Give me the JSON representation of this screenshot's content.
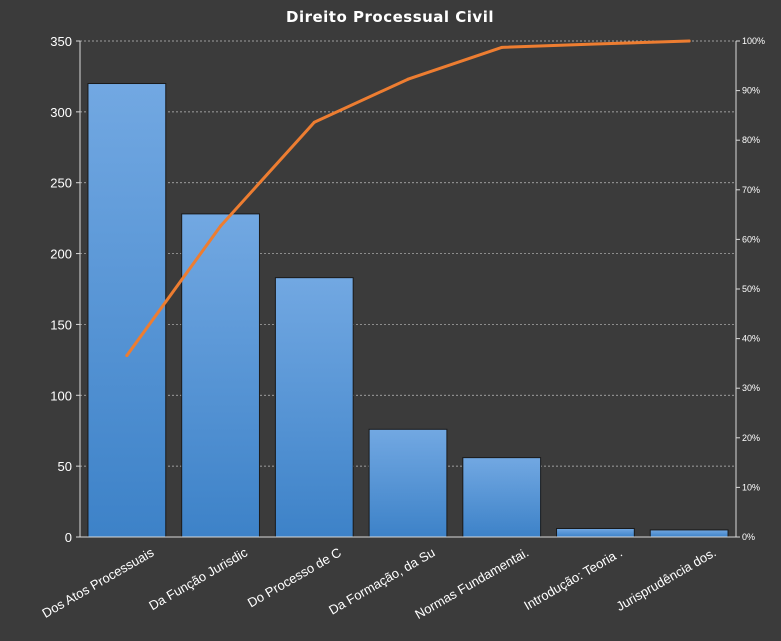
{
  "chart_data": {
    "type": "bar",
    "title": "Direito  Processual  Civil",
    "categories": [
      "Dos Atos Processuais",
      "Da Função Jurisdic",
      "Do Processo de C",
      "Da Formação, da Su",
      "Normas Fundamentai.",
      "Introdução: Teoria .",
      "Jurisprudência dos."
    ],
    "series": [
      {
        "type": "bar",
        "values": [
          320,
          228,
          183,
          76,
          56,
          6,
          5
        ],
        "color": "#5b9bd5"
      },
      {
        "type": "line",
        "axis": "right",
        "values": [
          36.6,
          62.7,
          83.6,
          92.3,
          98.7,
          99.4,
          100
        ],
        "color": "#ed7d31"
      }
    ],
    "ylim": [
      0,
      350
    ],
    "yticks": [
      0,
      50,
      100,
      150,
      200,
      250,
      300,
      350
    ],
    "y2lim": [
      0,
      100
    ],
    "y2ticks": [
      "0%",
      "10%",
      "20%",
      "30%",
      "40%",
      "50%",
      "60%",
      "70%",
      "80%",
      "90%",
      "100%"
    ],
    "grid": true,
    "legend": "none"
  }
}
